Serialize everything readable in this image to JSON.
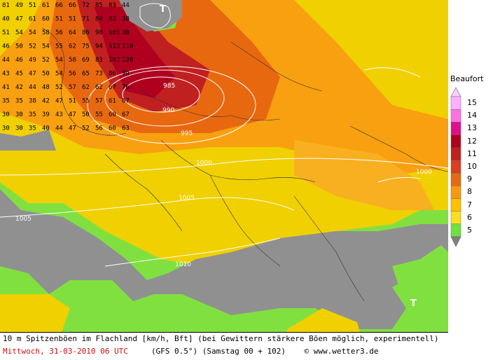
{
  "map": {
    "pressure_markers": [
      {
        "id": "high-north",
        "label": "T"
      },
      {
        "id": "high-south",
        "label": "T"
      }
    ],
    "isobar_labels": [
      "985",
      "990",
      "995",
      "1000",
      "1005",
      "1010",
      "1005",
      "1000"
    ],
    "grid_values_sample": [
      [
        "81",
        "49",
        "51",
        "61",
        "66",
        "66",
        "72",
        "85",
        "83",
        "44"
      ],
      [
        "40",
        "47",
        "61",
        "60",
        "51",
        "51",
        "71",
        "84",
        "82",
        "38"
      ],
      [
        "51",
        "54",
        "54",
        "58",
        "56",
        "64",
        "86",
        "98",
        "105",
        "38"
      ],
      [
        "46",
        "50",
        "52",
        "54",
        "55",
        "62",
        "75",
        "94",
        "113",
        "110"
      ],
      [
        "44",
        "46",
        "49",
        "52",
        "54",
        "58",
        "69",
        "83",
        "102",
        "120"
      ],
      [
        "43",
        "45",
        "47",
        "50",
        "54",
        "56",
        "65",
        "73",
        "86",
        "99"
      ],
      [
        "41",
        "42",
        "44",
        "48",
        "52",
        "57",
        "62",
        "62",
        "67",
        "76"
      ],
      [
        "35",
        "35",
        "38",
        "42",
        "47",
        "51",
        "55",
        "57",
        "61",
        "67"
      ],
      [
        "30",
        "30",
        "35",
        "39",
        "43",
        "47",
        "50",
        "55",
        "60",
        "67"
      ],
      [
        "30",
        "30",
        "35",
        "40",
        "44",
        "47",
        "52",
        "56",
        "60",
        "63"
      ]
    ]
  },
  "legend": {
    "title": "Beaufort",
    "levels": [
      {
        "bft": "15",
        "color": "#ffb0ff"
      },
      {
        "bft": "14",
        "color": "#ff70e0"
      },
      {
        "bft": "13",
        "color": "#e0108c"
      },
      {
        "bft": "12",
        "color": "#b00020"
      },
      {
        "bft": "11",
        "color": "#c02020"
      },
      {
        "bft": "10",
        "color": "#d84020"
      },
      {
        "bft": "9",
        "color": "#e86810"
      },
      {
        "bft": "8",
        "color": "#f89810"
      },
      {
        "bft": "7",
        "color": "#ffc000"
      },
      {
        "bft": "6",
        "color": "#f8e020"
      },
      {
        "bft": "5",
        "color": "#70e040"
      }
    ]
  },
  "caption": {
    "line1": "10 m Spitzenböen im Flachland [km/h, Bft] (bei Gewittern stärkere Böen möglich, experimentell)",
    "date": "Mittwoch, 31-03-2010  06 UTC",
    "model": "(GFS 0.5°)  (Samstag 00 + 102)",
    "copyright": "© www.wetter3.de"
  }
}
